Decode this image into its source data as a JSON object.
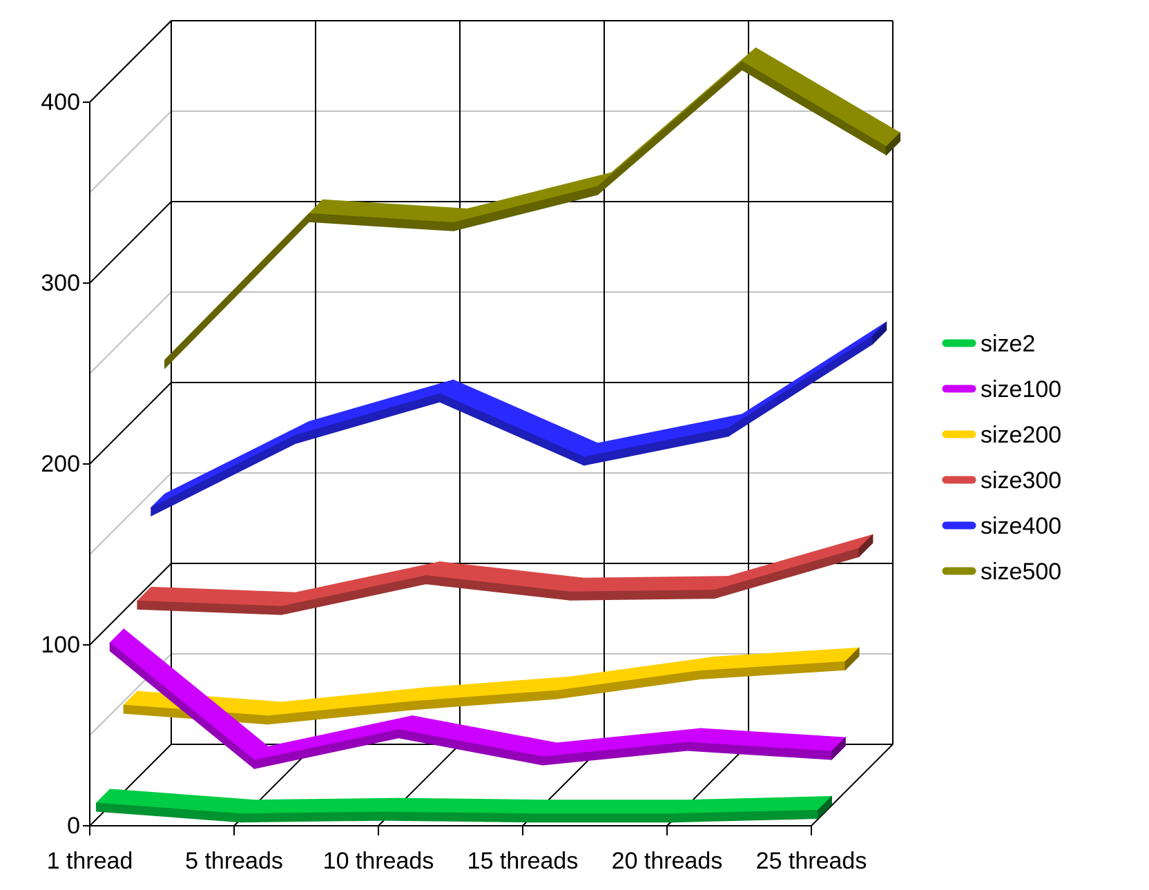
{
  "chart_data": {
    "type": "line",
    "style": "3d-ribbon",
    "title": "",
    "xlabel": "",
    "ylabel": "",
    "categories": [
      "1 thread",
      "5 threads",
      "10 threads",
      "15 threads",
      "20 threads",
      "25 threads"
    ],
    "ylim": [
      0,
      400
    ],
    "yticks": [
      "0",
      "100",
      "200",
      "300",
      "400"
    ],
    "grid": true,
    "legend_position": "right",
    "series": [
      {
        "name": "size2",
        "values": [
          9,
          3,
          4,
          3,
          3,
          5
        ],
        "color": "#00cc44"
      },
      {
        "name": "size100",
        "values": [
          90,
          25,
          42,
          27,
          35,
          30
        ],
        "color": "#cc00ff"
      },
      {
        "name": "size200",
        "values": [
          48,
          42,
          50,
          56,
          67,
          72
        ],
        "color": "#ffd200"
      },
      {
        "name": "size300",
        "values": [
          98,
          95,
          112,
          103,
          104,
          127
        ],
        "color": "#d94848"
      },
      {
        "name": "size400",
        "values": [
          142,
          182,
          205,
          170,
          186,
          237
        ],
        "color": "#2a2aff"
      },
      {
        "name": "size500",
        "values": [
          216,
          297,
          292,
          312,
          381,
          334
        ],
        "color": "#8a8a00"
      }
    ]
  }
}
